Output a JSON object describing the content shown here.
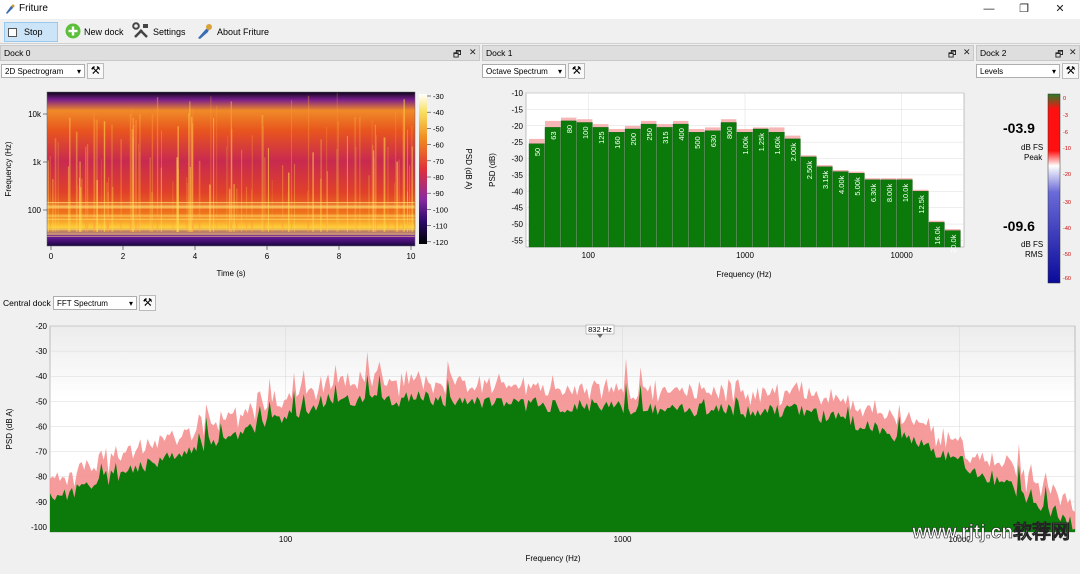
{
  "window": {
    "title": "Friture",
    "minimize": "—",
    "maximize": "❐",
    "close": "✕"
  },
  "toolbar": {
    "stop": "Stop",
    "new_dock": "New dock",
    "settings": "Settings",
    "about": "About Friture"
  },
  "docks": {
    "dock0": {
      "title": "Dock 0",
      "widget": "2D Spectrogram"
    },
    "dock1": {
      "title": "Dock 1",
      "widget": "Octave Spectrum"
    },
    "dock2": {
      "title": "Dock 2",
      "widget": "Levels"
    },
    "central": {
      "title": "Central dock",
      "widget": "FFT Spectrum"
    }
  },
  "colors": {
    "green": "#0b7a0b",
    "red": "#ff2020",
    "pink": "#f48a8a",
    "light_pink": "#f6b6b6"
  },
  "chart_data": [
    {
      "type": "heatmap",
      "name": "2D Spectrogram",
      "xlabel": "Time (s)",
      "ylabel": "Frequency (Hz)",
      "x_ticks": [
        "0",
        "2",
        "4",
        "6",
        "8",
        "10"
      ],
      "y_ticks": [
        "10k",
        "1k",
        "100"
      ],
      "colorbar_label": "PSD (dB A)",
      "colorbar_ticks": [
        "-30",
        "-40",
        "-50",
        "-60",
        "-70",
        "-80",
        "-90",
        "-100",
        "-110",
        "-120"
      ],
      "xlim": [
        0,
        10
      ]
    },
    {
      "type": "bar",
      "name": "Octave Spectrum",
      "xlabel": "Frequency (Hz)",
      "ylabel": "PSD (dB)",
      "ylim": [
        -57,
        -10
      ],
      "y_ticks": [
        "-10",
        "-15",
        "-20",
        "-25",
        "-30",
        "-35",
        "-40",
        "-45",
        "-50",
        "-55"
      ],
      "x_ticks": [
        "100",
        "1000",
        "10000"
      ],
      "categories": [
        "50",
        "63",
        "80",
        "100",
        "125",
        "160",
        "200",
        "250",
        "315",
        "400",
        "500",
        "630",
        "800",
        "1.00k",
        "1.25k",
        "1.60k",
        "2.00k",
        "2.50k",
        "3.15k",
        "4.00k",
        "5.00k",
        "6.30k",
        "8.00k",
        "10.0k",
        "12.5k",
        "16.0k",
        "20.0k"
      ],
      "values": [
        -25.5,
        -20.5,
        -18.5,
        -19,
        -20.5,
        -22,
        -21,
        -19.5,
        -20.5,
        -19.5,
        -22,
        -21.5,
        -19,
        -22,
        -21,
        -22,
        -24,
        -29.5,
        -32.5,
        -34,
        -34.5,
        -36.5,
        -36.5,
        -36.5,
        -40,
        -49.5,
        -52
      ],
      "peaks": [
        -24,
        -18.5,
        -17.5,
        -18,
        -19.5,
        -21,
        -20,
        -18.5,
        -19.5,
        -18.5,
        -21,
        -20.5,
        -18,
        -21,
        -20.5,
        -20.5,
        -23,
        -29,
        -32,
        -33.5,
        -34,
        -36,
        -36,
        -36,
        -39.5,
        -49,
        -51.5
      ]
    },
    {
      "type": "bar",
      "name": "Levels",
      "peak_value": "-03.9",
      "peak_unit": "dB FS",
      "peak_label": "Peak",
      "rms_value": "-09.6",
      "rms_unit": "dB FS",
      "rms_label": "RMS",
      "ticks": [
        "0",
        "-3",
        "-6",
        "-10",
        "-20",
        "-30",
        "-40",
        "-50",
        "-60"
      ]
    },
    {
      "type": "area",
      "name": "FFT Spectrum",
      "xlabel": "Frequency (Hz)",
      "ylabel": "PSD (dB A)",
      "ylim": [
        -102,
        -20
      ],
      "y_ticks": [
        "-20",
        "-30",
        "-40",
        "-50",
        "-60",
        "-70",
        "-80",
        "-90",
        "-100"
      ],
      "x_ticks": [
        "100",
        "1000",
        "10000"
      ],
      "annotation": "832 Hz"
    }
  ],
  "watermark": "www.rjtj.cn软荐网"
}
